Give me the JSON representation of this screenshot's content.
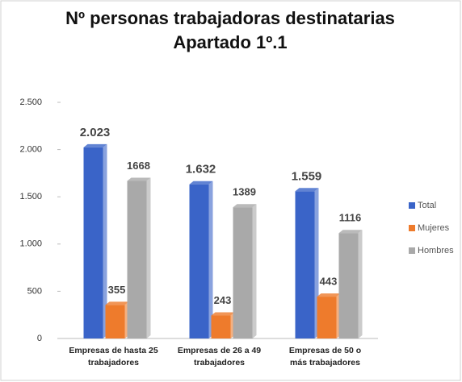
{
  "chart_data": {
    "type": "bar",
    "title": "Nº personas trabajadoras destinatarias Apartado 1º.1",
    "categories": [
      "Empresas de hasta 25 trabajadores",
      "Empresas de 26 a 49 trabajadores",
      "Empresas de 50 o más trabajadores"
    ],
    "series": [
      {
        "name": "Total",
        "color": "#3a64c8",
        "values": [
          2023,
          1632,
          1559
        ],
        "value_labels": [
          "2.023",
          "1.632",
          "1.559"
        ]
      },
      {
        "name": "Mujeres",
        "color": "#ee7b2c",
        "values": [
          355,
          243,
          443
        ]
      },
      {
        "name": "Hombres",
        "color": "#a9a9a9",
        "values": [
          1668,
          1389,
          1116
        ]
      }
    ],
    "ylim": [
      0,
      2500
    ],
    "yticks": [
      0,
      500,
      {
        "value": 1000,
        "label": "1.000"
      },
      {
        "value": 1500,
        "label": "1.500"
      },
      {
        "value": 2000,
        "label": "2.000"
      },
      {
        "value": 2500,
        "label": "2.500"
      }
    ],
    "legend": "right"
  }
}
